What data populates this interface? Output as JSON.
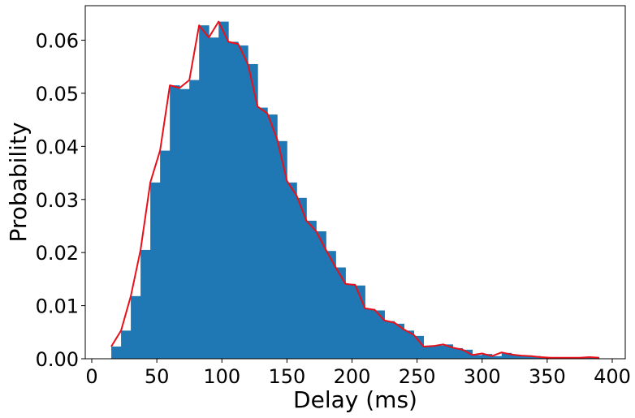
{
  "chart_data": {
    "type": "bar",
    "title": "",
    "xlabel": "Delay (ms)",
    "ylabel": "Probability",
    "xlim": [
      -5,
      410
    ],
    "ylim": [
      0,
      0.0665
    ],
    "grid": false,
    "xticks": [
      0,
      50,
      100,
      150,
      200,
      250,
      300,
      350,
      400
    ],
    "xtick_labels": [
      "0",
      "50",
      "100",
      "150",
      "200",
      "250",
      "300",
      "350",
      "400"
    ],
    "yticks": [
      0.0,
      0.01,
      0.02,
      0.03,
      0.04,
      0.05,
      0.06
    ],
    "ytick_labels": [
      "0.00",
      "0.01",
      "0.02",
      "0.03",
      "0.04",
      "0.05",
      "0.06"
    ],
    "bin_width": 7.5,
    "bin_starts": [
      15,
      22.5,
      30,
      37.5,
      45,
      52.5,
      60,
      67.5,
      75,
      82.5,
      90,
      97.5,
      105,
      112.5,
      120,
      127.5,
      135,
      142.5,
      150,
      157.5,
      165,
      172.5,
      180,
      187.5,
      195,
      202.5,
      210,
      217.5,
      225,
      232.5,
      240,
      247.5,
      255,
      262.5,
      270,
      277.5,
      285,
      292.5,
      300,
      307.5,
      315,
      322.5,
      330,
      337.5,
      345,
      352.5,
      360,
      367.5,
      375,
      382.5
    ],
    "values": [
      0.0023,
      0.0053,
      0.0118,
      0.0205,
      0.0332,
      0.0392,
      0.0515,
      0.0508,
      0.0525,
      0.0628,
      0.0605,
      0.0635,
      0.0597,
      0.059,
      0.0555,
      0.0473,
      0.046,
      0.041,
      0.0332,
      0.0303,
      0.026,
      0.024,
      0.0203,
      0.0172,
      0.0141,
      0.0138,
      0.0094,
      0.0091,
      0.0071,
      0.0066,
      0.0053,
      0.0043,
      0.0023,
      0.0025,
      0.0027,
      0.002,
      0.0017,
      0.0007,
      0.0009,
      0.0005,
      0.0011,
      0.0007,
      0.0006,
      0.0005,
      0.0003,
      0.0002,
      0.0002,
      0.0002,
      0.0003,
      0.0002
    ],
    "series": [
      {
        "name": "histogram",
        "type": "bar",
        "color": "#1f77b4"
      },
      {
        "name": "density-line",
        "type": "line",
        "color": "#e8101a",
        "x": [
          15,
          22.5,
          30,
          37.5,
          45,
          52.5,
          60,
          67.5,
          75,
          82.5,
          90,
          97.5,
          105,
          112.5,
          120,
          127.5,
          135,
          142.5,
          150,
          157.5,
          165,
          172.5,
          180,
          187.5,
          195,
          202.5,
          210,
          217.5,
          225,
          232.5,
          240,
          247.5,
          255,
          262.5,
          270,
          277.5,
          285,
          292.5,
          300,
          307.5,
          315,
          322.5,
          330,
          337.5,
          345,
          352.5,
          360,
          367.5,
          375,
          382.5,
          390
        ],
        "y": [
          0.0023,
          0.0053,
          0.0118,
          0.0205,
          0.0332,
          0.0392,
          0.0515,
          0.051,
          0.0525,
          0.0628,
          0.0605,
          0.0635,
          0.0597,
          0.0593,
          0.0555,
          0.0475,
          0.0462,
          0.0413,
          0.0335,
          0.0307,
          0.026,
          0.024,
          0.0205,
          0.0172,
          0.0141,
          0.0139,
          0.0095,
          0.0092,
          0.0072,
          0.0068,
          0.0055,
          0.0045,
          0.0023,
          0.0024,
          0.0027,
          0.0021,
          0.0017,
          0.0007,
          0.001,
          0.0005,
          0.0012,
          0.0008,
          0.0006,
          0.0005,
          0.0003,
          0.0002,
          0.0002,
          0.0002,
          0.0002,
          0.0003,
          0.0002
        ]
      }
    ]
  }
}
